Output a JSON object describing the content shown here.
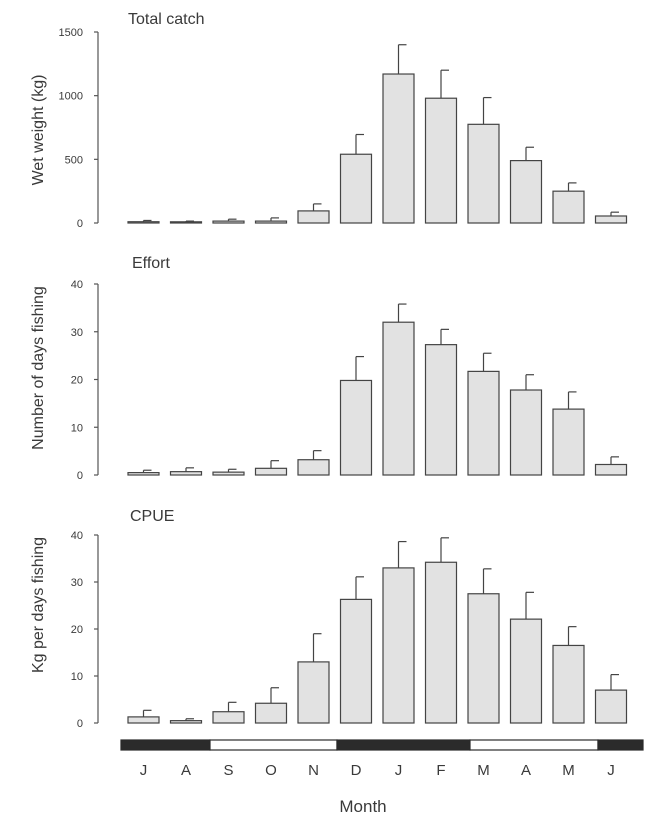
{
  "chart_data": [
    {
      "type": "bar",
      "title": "Total catch",
      "ylabel": "Wet weight (kg)",
      "categories": [
        "J",
        "A",
        "S",
        "O",
        "N",
        "D",
        "J",
        "F",
        "M",
        "A",
        "M",
        "J"
      ],
      "values": [
        10,
        5,
        15,
        15,
        95,
        540,
        1170,
        980,
        775,
        490,
        250,
        55
      ],
      "errors": [
        10,
        10,
        15,
        25,
        55,
        155,
        230,
        220,
        210,
        105,
        65,
        30
      ],
      "ylim": [
        0,
        1500
      ],
      "yticks": [
        0,
        500,
        1000,
        1500
      ]
    },
    {
      "type": "bar",
      "title": "Effort",
      "ylabel": "Number of days fishing",
      "categories": [
        "J",
        "A",
        "S",
        "O",
        "N",
        "D",
        "J",
        "F",
        "M",
        "A",
        "M",
        "J"
      ],
      "values": [
        0.5,
        0.7,
        0.6,
        1.4,
        3.2,
        19.8,
        32.0,
        27.3,
        21.7,
        17.8,
        13.8,
        2.2
      ],
      "errors": [
        0.5,
        0.8,
        0.6,
        1.6,
        1.9,
        5.0,
        3.8,
        3.2,
        3.8,
        3.2,
        3.6,
        1.6
      ],
      "ylim": [
        0,
        40
      ],
      "yticks": [
        0,
        10,
        20,
        30,
        40
      ]
    },
    {
      "type": "bar",
      "title": "CPUE",
      "ylabel": "Kg per days fishing",
      "xlabel": "Month",
      "categories": [
        "J",
        "A",
        "S",
        "O",
        "N",
        "D",
        "J",
        "F",
        "M",
        "A",
        "M",
        "J"
      ],
      "values": [
        1.3,
        0.5,
        2.4,
        4.2,
        13.0,
        26.3,
        33.0,
        34.2,
        27.5,
        22.1,
        16.5,
        7.0
      ],
      "errors": [
        1.4,
        0.4,
        2.0,
        3.3,
        6.0,
        4.8,
        5.6,
        5.2,
        5.3,
        5.7,
        4.0,
        3.3
      ],
      "ylim": [
        0,
        40
      ],
      "yticks": [
        0,
        10,
        20,
        30,
        40
      ]
    }
  ],
  "season_bar": {
    "segments": [
      {
        "fill": "dark"
      },
      {
        "fill": "light"
      },
      {
        "fill": "dark"
      },
      {
        "fill": "light"
      },
      {
        "fill": "dark"
      }
    ]
  },
  "colors": {
    "bar_fill": "#e2e2e2",
    "stroke": "#444444",
    "season_dark": "#2b2b2b",
    "season_light": "#ffffff"
  }
}
